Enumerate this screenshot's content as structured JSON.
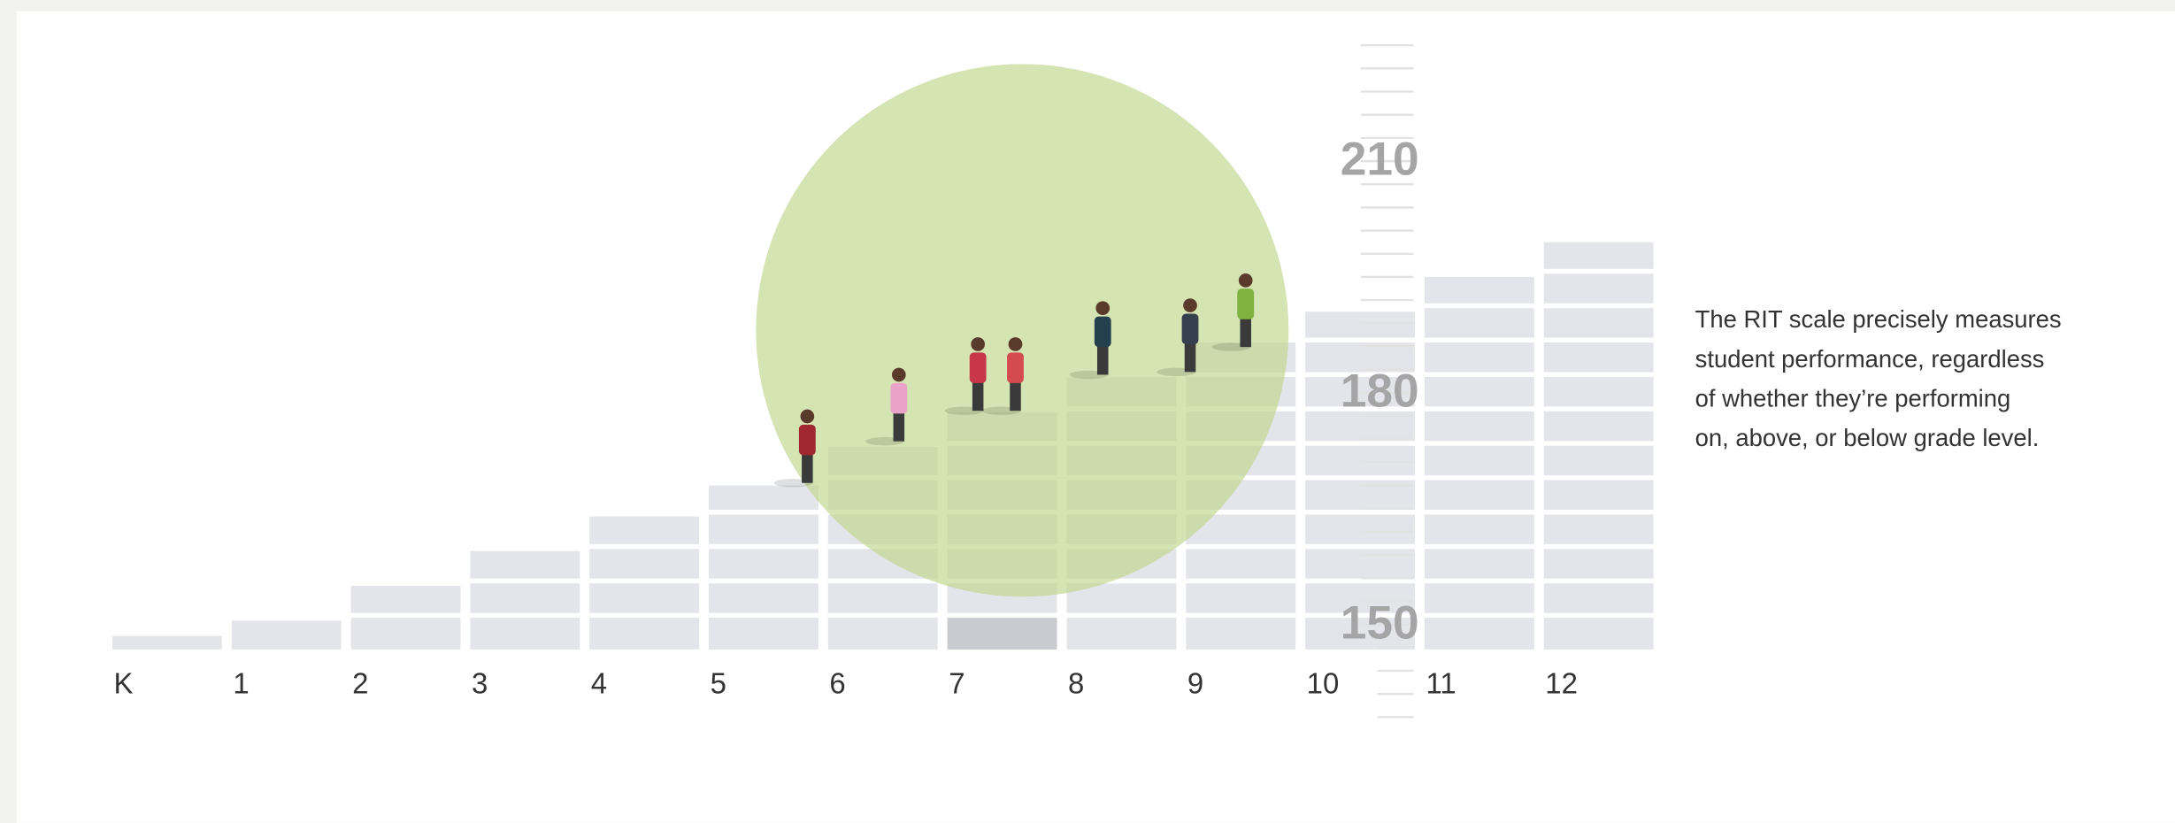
{
  "chart_data": {
    "type": "bar",
    "categories": [
      "K",
      "1",
      "2",
      "3",
      "4",
      "5",
      "6",
      "7",
      "8",
      "9",
      "10",
      "11",
      "12"
    ],
    "values": [
      148.5,
      150.5,
      155,
      159.5,
      164,
      168,
      173,
      177.5,
      182,
      186.5,
      190.5,
      195,
      199.5
    ],
    "color": "#e3e5ea",
    "ylim": [
      138,
      225
    ],
    "yticks": [
      150,
      180,
      210
    ],
    "highlight_color": "#bfd68a",
    "description": [
      "The RIT scale precisely measures",
      "student performance, regardless",
      "of whether they’re performing",
      "on, above, or below grade level."
    ]
  }
}
